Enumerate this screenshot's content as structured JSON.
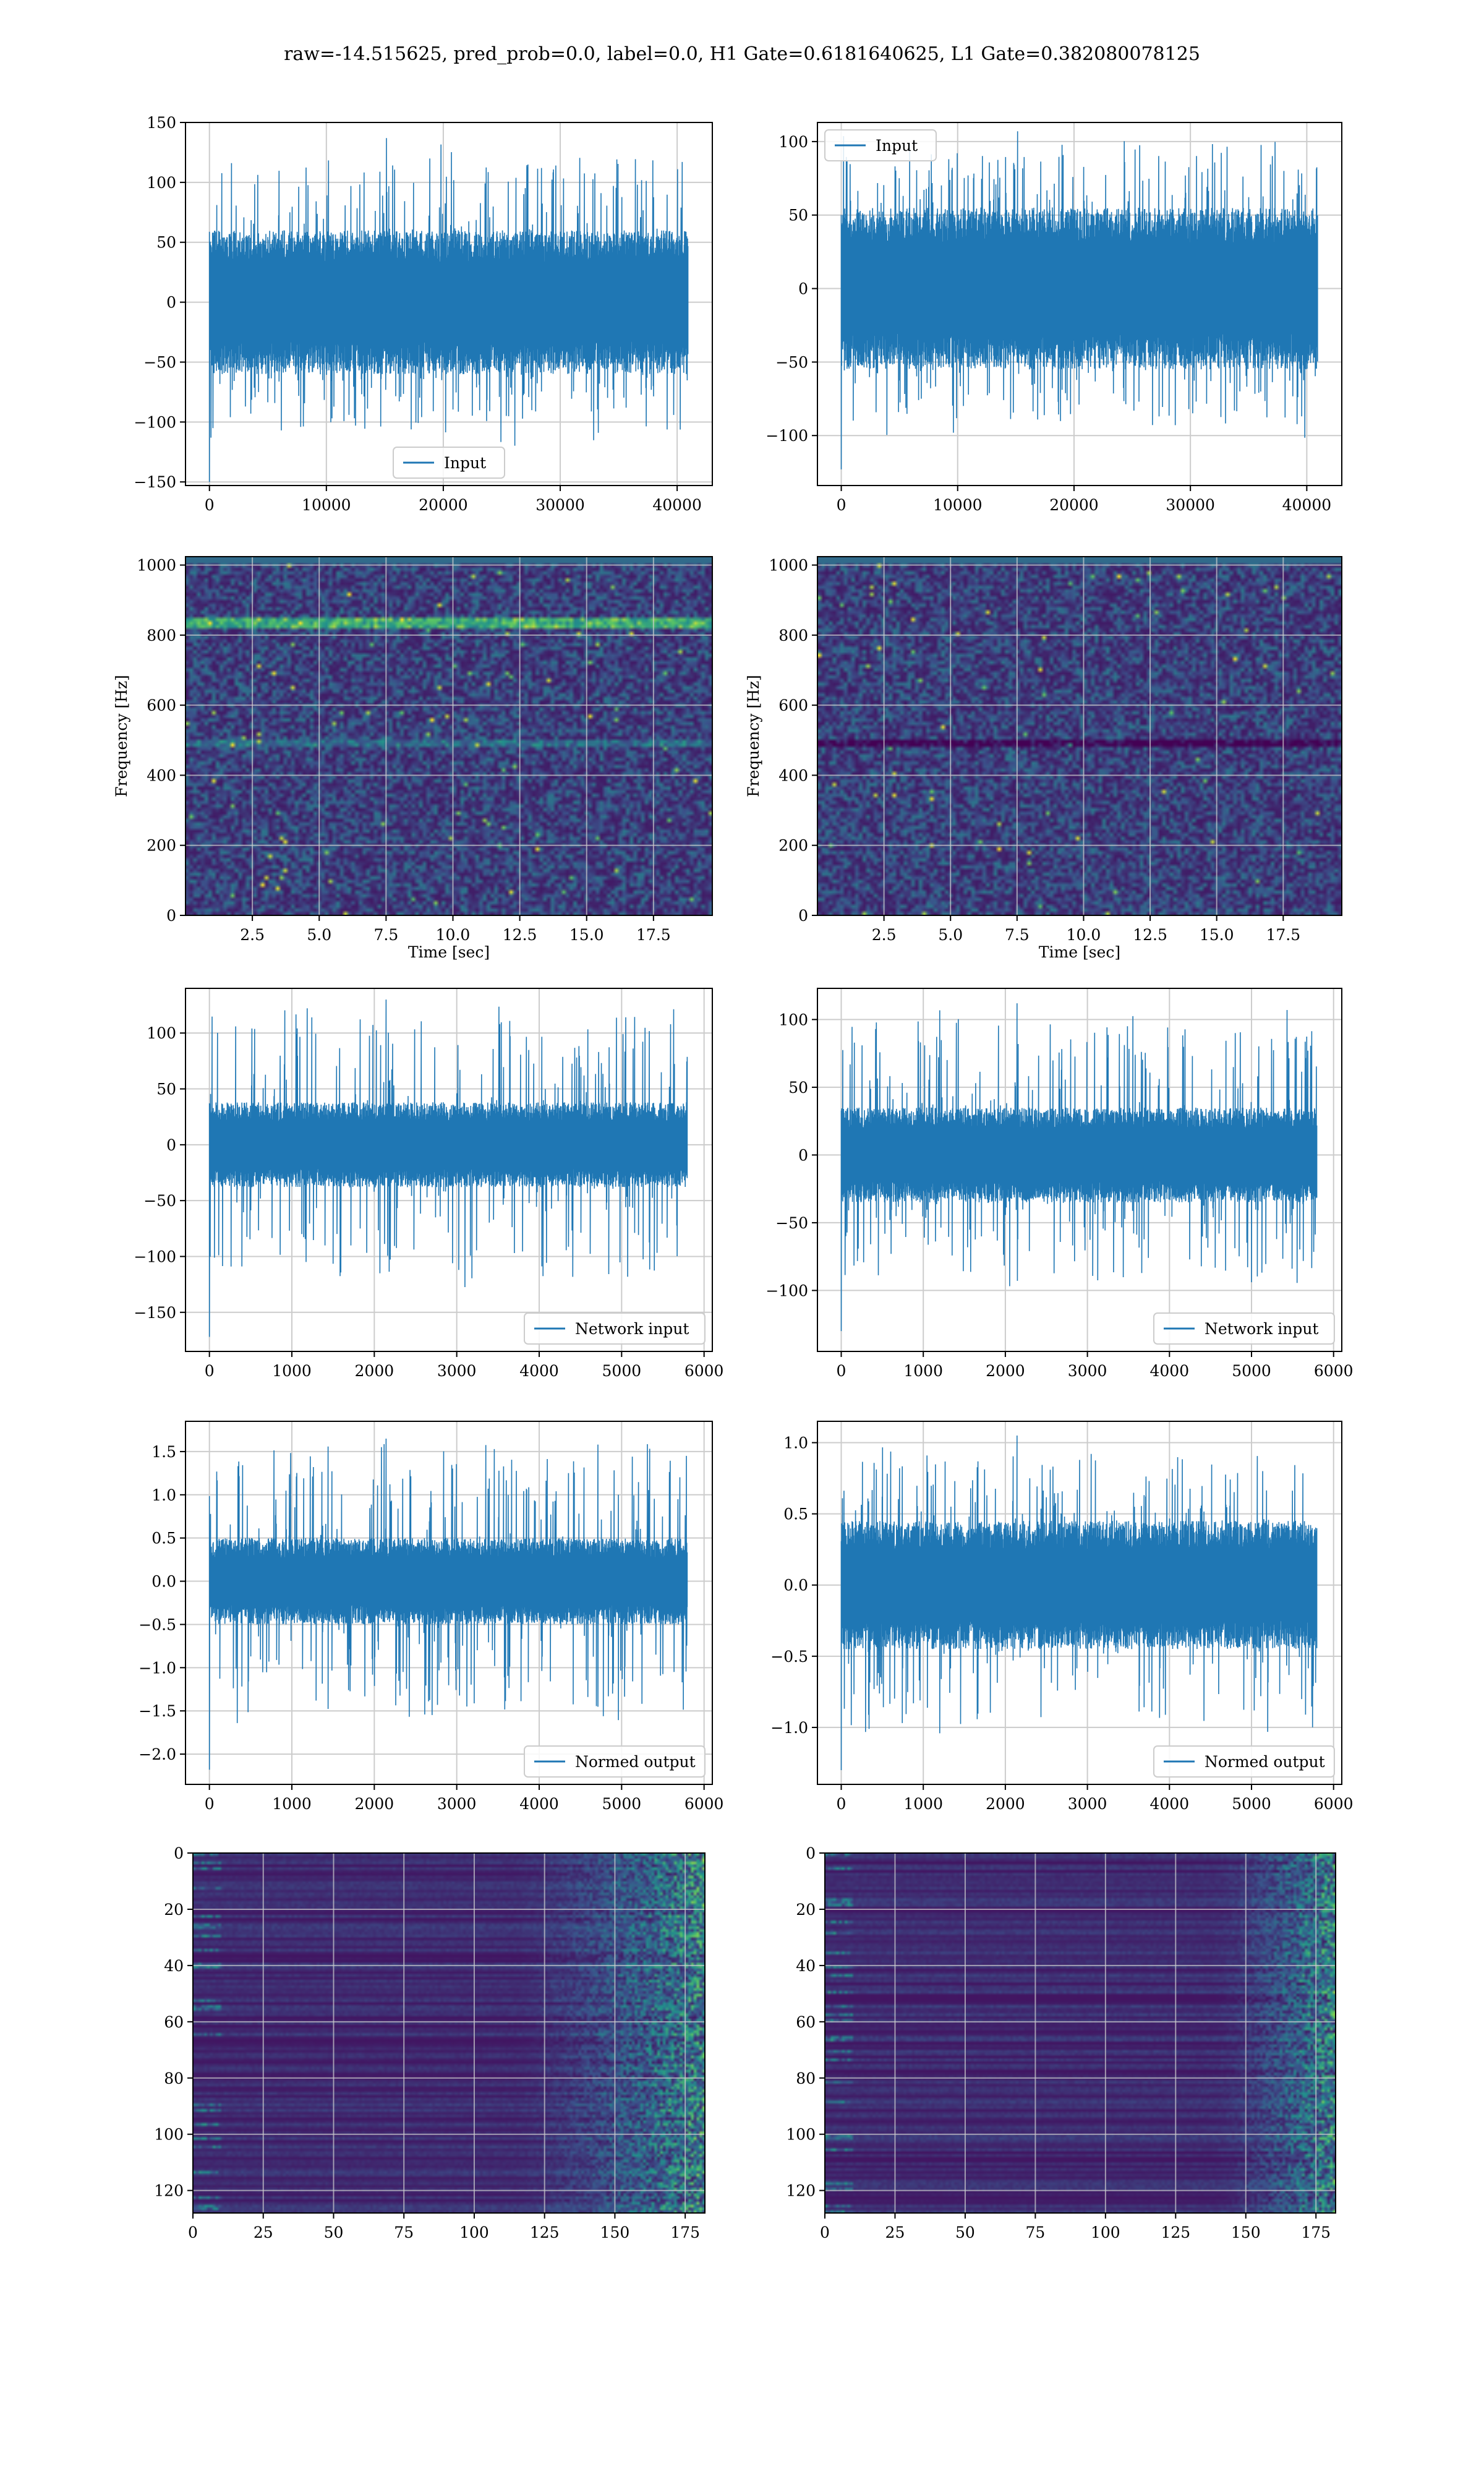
{
  "title": "raw=-14.515625, pred_prob=0.0, label=0.0, H1 Gate=0.6181640625, L1 Gate=0.382080078125",
  "colors": {
    "series": "#1f77b4",
    "grid": "#cccccc",
    "viridis_low": "#440154",
    "viridis_mid": "#21918c",
    "viridis_high": "#fde725"
  },
  "chart_data": [
    {
      "id": "h1-input",
      "type": "line",
      "title": "",
      "xlabel": "",
      "ylabel": "",
      "xlim": [
        -2048,
        43008
      ],
      "ylim": [
        -153,
        150
      ],
      "xticks": [
        0,
        10000,
        20000,
        30000,
        40000
      ],
      "yticks": [
        -150,
        -100,
        -50,
        0,
        50,
        100,
        150
      ],
      "series": [
        {
          "name": "Input",
          "n_samples": 40960,
          "typical_amplitude": 60,
          "max": 137,
          "min": -150
        }
      ],
      "legend": "lower center",
      "grid": true
    },
    {
      "id": "l1-input",
      "type": "line",
      "title": "",
      "xlabel": "",
      "ylabel": "",
      "xlim": [
        -2048,
        43008
      ],
      "ylim": [
        -134,
        113
      ],
      "xticks": [
        0,
        10000,
        20000,
        30000,
        40000
      ],
      "yticks": [
        -100,
        -50,
        0,
        50,
        100
      ],
      "series": [
        {
          "name": "Input",
          "n_samples": 40960,
          "typical_amplitude": 55,
          "max": 107,
          "min": -123
        }
      ],
      "legend": "upper left",
      "grid": true
    },
    {
      "id": "h1-spectrogram",
      "type": "heatmap",
      "title": "",
      "xlabel": "Time [sec]",
      "ylabel": "Frequency [Hz]",
      "xlim": [
        0,
        19.7
      ],
      "ylim": [
        0,
        1024
      ],
      "xticks": [
        2.5,
        5.0,
        7.5,
        10.0,
        12.5,
        15.0,
        17.5
      ],
      "yticks": [
        0,
        200,
        400,
        600,
        800,
        1000
      ],
      "colormap": "viridis",
      "grid": true,
      "features": [
        {
          "kind": "line",
          "frequency": 840,
          "strength": 0.55
        },
        {
          "kind": "line",
          "frequency": 500,
          "strength": 0.2
        }
      ]
    },
    {
      "id": "l1-spectrogram",
      "type": "heatmap",
      "title": "",
      "xlabel": "Time [sec]",
      "ylabel": "Frequency [Hz]",
      "xlim": [
        0,
        19.7
      ],
      "ylim": [
        0,
        1024
      ],
      "xticks": [
        2.5,
        5.0,
        7.5,
        10.0,
        12.5,
        15.0,
        17.5
      ],
      "yticks": [
        0,
        200,
        400,
        600,
        800,
        1000
      ],
      "colormap": "viridis",
      "grid": true,
      "features": [
        {
          "kind": "line",
          "frequency": 500,
          "strength": -0.3
        }
      ]
    },
    {
      "id": "h1-network-input",
      "type": "line",
      "title": "",
      "xlabel": "",
      "ylabel": "",
      "xlim": [
        -290,
        6100
      ],
      "ylim": [
        -185,
        140
      ],
      "xticks": [
        0,
        1000,
        2000,
        3000,
        4000,
        5000,
        6000
      ],
      "yticks": [
        -150,
        -100,
        -50,
        0,
        50,
        100
      ],
      "series": [
        {
          "name": "Network input",
          "n_samples": 5800,
          "typical_amplitude": 38,
          "max": 130,
          "min": -172
        }
      ],
      "legend": "lower right",
      "grid": true
    },
    {
      "id": "l1-network-input",
      "type": "line",
      "title": "",
      "xlabel": "",
      "ylabel": "",
      "xlim": [
        -290,
        6100
      ],
      "ylim": [
        -145,
        123
      ],
      "xticks": [
        0,
        1000,
        2000,
        3000,
        4000,
        5000,
        6000
      ],
      "yticks": [
        -100,
        -50,
        0,
        50,
        100
      ],
      "series": [
        {
          "name": "Network input",
          "n_samples": 5800,
          "typical_amplitude": 35,
          "max": 112,
          "min": -130
        }
      ],
      "legend": "lower right",
      "grid": true
    },
    {
      "id": "h1-normed-output",
      "type": "line",
      "title": "",
      "xlabel": "",
      "ylabel": "",
      "xlim": [
        -290,
        6100
      ],
      "ylim": [
        -2.35,
        1.85
      ],
      "xticks": [
        0,
        1000,
        2000,
        3000,
        4000,
        5000,
        6000
      ],
      "yticks": [
        -2.0,
        -1.5,
        -1.0,
        -0.5,
        0.0,
        0.5,
        1.0,
        1.5
      ],
      "series": [
        {
          "name": "Normed output",
          "n_samples": 5800,
          "typical_amplitude": 0.5,
          "max": 1.65,
          "min": -2.18
        }
      ],
      "legend": "lower right",
      "grid": true
    },
    {
      "id": "l1-normed-output",
      "type": "line",
      "title": "",
      "xlabel": "",
      "ylabel": "",
      "xlim": [
        -290,
        6100
      ],
      "ylim": [
        -1.4,
        1.15
      ],
      "xticks": [
        0,
        1000,
        2000,
        3000,
        4000,
        5000,
        6000
      ],
      "yticks": [
        -1.0,
        -0.5,
        0.0,
        0.5,
        1.0
      ],
      "series": [
        {
          "name": "Normed output",
          "n_samples": 5800,
          "typical_amplitude": 0.45,
          "max": 1.05,
          "min": -1.3
        }
      ],
      "legend": "lower right",
      "grid": true
    },
    {
      "id": "h1-features",
      "type": "heatmap",
      "title": "",
      "xlabel": "",
      "ylabel": "",
      "xlim": [
        0,
        182
      ],
      "ylim": [
        128,
        0
      ],
      "xticks": [
        0,
        25,
        50,
        75,
        100,
        125,
        150,
        175
      ],
      "yticks": [
        0,
        20,
        40,
        60,
        80,
        100,
        120
      ],
      "colormap": "viridis",
      "grid": true,
      "features": [
        {
          "kind": "activity",
          "region": "columns 115-182"
        }
      ]
    },
    {
      "id": "l1-features",
      "type": "heatmap",
      "title": "",
      "xlabel": "",
      "ylabel": "",
      "xlim": [
        0,
        182
      ],
      "ylim": [
        128,
        0
      ],
      "xticks": [
        0,
        25,
        50,
        75,
        100,
        125,
        150,
        175
      ],
      "yticks": [
        0,
        20,
        40,
        60,
        80,
        100,
        120
      ],
      "colormap": "viridis",
      "grid": true,
      "features": [
        {
          "kind": "activity",
          "region": "columns 140-182"
        }
      ]
    }
  ]
}
